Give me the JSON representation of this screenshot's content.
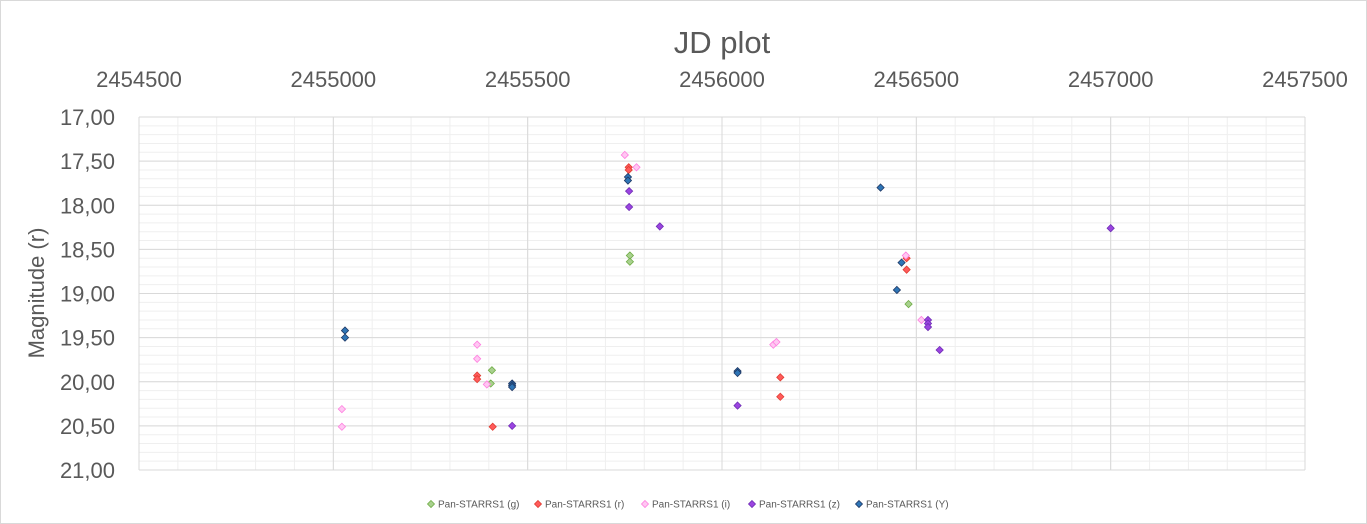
{
  "chart_data": {
    "type": "scatter",
    "title": "JD plot",
    "xlabel": "",
    "ylabel": "Magnitude (r)",
    "xlim": [
      2454500,
      2457500
    ],
    "x_ticks": [
      2454500,
      2455000,
      2455500,
      2456000,
      2456500,
      2457000,
      2457500
    ],
    "x_tick_labels": [
      "2454500",
      "2455000",
      "2455500",
      "2456000",
      "2456500",
      "2457000",
      "2457500"
    ],
    "ylim": [
      17.0,
      21.0
    ],
    "y_inverted": true,
    "y_ticks": [
      17.0,
      17.5,
      18.0,
      18.5,
      19.0,
      19.5,
      20.0,
      20.5,
      21.0
    ],
    "y_tick_labels": [
      "17,00",
      "17,50",
      "18,00",
      "18,50",
      "19,00",
      "19,50",
      "20,00",
      "20,50",
      "21,00"
    ],
    "x_axis_position": "top",
    "grid": true,
    "minor_grid": true,
    "legend_position": "bottom",
    "series": [
      {
        "name": "Pan-STARRS1 (g)",
        "color": "#70ad47",
        "fill": "#a9d18e",
        "x": [
          2455408,
          2455405,
          2455763,
          2455763,
          2456480
        ],
        "y": [
          19.87,
          20.02,
          18.57,
          18.64,
          19.12
        ]
      },
      {
        "name": "Pan-STARRS1 (r)",
        "color": "#e03c31",
        "fill": "#ff5b5b",
        "x": [
          2455370,
          2455370,
          2455410,
          2455760,
          2455760,
          2456150,
          2456150,
          2456475,
          2456475
        ],
        "y": [
          19.93,
          19.97,
          20.51,
          17.57,
          17.6,
          19.95,
          20.17,
          18.6,
          18.73
        ]
      },
      {
        "name": "Pan-STARRS1 (i)",
        "color": "#ff7fe0",
        "fill": "#ffc7f2",
        "x": [
          2455022,
          2455022,
          2455370,
          2455370,
          2455395,
          2455750,
          2455780,
          2456132,
          2456140,
          2456473,
          2456513
        ],
        "y": [
          20.31,
          20.51,
          19.58,
          19.74,
          20.03,
          17.43,
          17.57,
          19.58,
          19.55,
          18.57,
          19.3
        ]
      },
      {
        "name": "Pan-STARRS1 (z)",
        "color": "#6f2fb5",
        "fill": "#9b44e0",
        "x": [
          2455460,
          2455761,
          2455761,
          2455840,
          2456040,
          2456530,
          2456530,
          2456530,
          2456560,
          2457000
        ],
        "y": [
          20.5,
          17.84,
          18.02,
          18.24,
          20.27,
          19.3,
          19.34,
          19.38,
          19.64,
          18.26
        ]
      },
      {
        "name": "Pan-STARRS1 (Y)",
        "color": "#1f3864",
        "fill": "#2e75b6",
        "x": [
          2455030,
          2455030,
          2455460,
          2455460,
          2455460,
          2455758,
          2455758,
          2456040,
          2456040,
          2456408,
          2456450,
          2456462
        ],
        "y": [
          19.42,
          19.5,
          20.02,
          20.04,
          20.06,
          17.68,
          17.72,
          19.88,
          19.9,
          17.8,
          18.96,
          18.65
        ]
      }
    ]
  }
}
